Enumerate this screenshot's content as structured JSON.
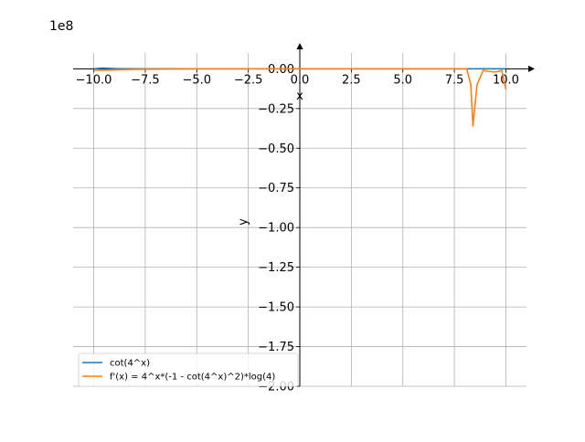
{
  "chart_data": {
    "type": "line",
    "offset_text": "1e8",
    "xlabel": "x",
    "ylabel": "y",
    "xlim": [
      -11,
      11
    ],
    "ylim": [
      -2.0,
      0.1
    ],
    "x_ticks": [
      -10.0,
      -7.5,
      -5.0,
      -2.5,
      0.0,
      2.5,
      5.0,
      7.5,
      10.0
    ],
    "x_tick_labels": [
      "−10.0",
      "−7.5",
      "−5.0",
      "−2.5",
      "0.0",
      "2.5",
      "5.0",
      "7.5",
      "10.0"
    ],
    "y_ticks": [
      0.0,
      -0.25,
      -0.5,
      -0.75,
      -1.0,
      -1.25,
      -1.5,
      -1.75,
      -2.0
    ],
    "y_tick_labels": [
      "0.00",
      "−0.25",
      "−0.50",
      "−0.75",
      "−1.00",
      "−1.25",
      "−1.50",
      "−1.75",
      "−2.00"
    ],
    "grid": true,
    "legend_position": "lower-left",
    "series": [
      {
        "name": "cot(4^x)",
        "color": "#1f77b4",
        "x": [
          -10,
          -9.6,
          -9.3,
          -9.0,
          -8.0,
          -5.0,
          0.0,
          5.0,
          8.0,
          9.0,
          10.0
        ],
        "y": [
          0.0,
          0.005,
          0.003,
          0.001,
          0.0,
          0.0,
          0.0,
          0.0,
          0.0,
          0.0,
          0.0
        ]
      },
      {
        "name": "f'(x) = 4^x*(-1 - cot(4^x)^2)*log(4)",
        "color": "#ff7f0e",
        "x": [
          -10.0,
          -9.5,
          -8.0,
          -5.0,
          0.0,
          5.0,
          7.0,
          8.0,
          8.1,
          8.3,
          8.4,
          8.6,
          8.9,
          9.1,
          9.5,
          9.8,
          10.0
        ],
        "y": [
          -0.01,
          -0.008,
          -0.003,
          0.0,
          0.0,
          0.0,
          0.0,
          0.0,
          0.0,
          -0.1,
          -0.36,
          -0.1,
          -0.01,
          -0.015,
          -0.02,
          -0.01,
          -0.13
        ]
      }
    ]
  }
}
